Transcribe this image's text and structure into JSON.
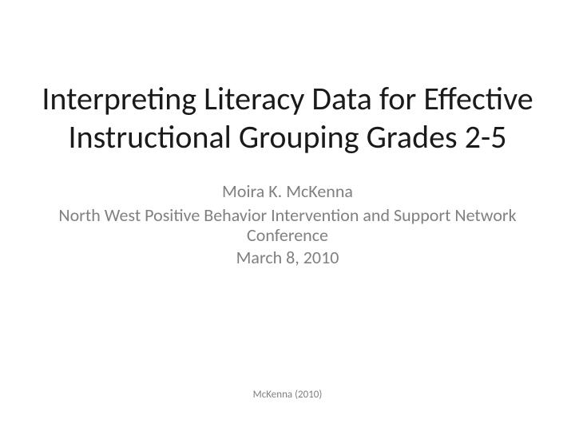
{
  "slide": {
    "title": "Interpreting Literacy Data for Effective Instructional Grouping Grades 2-5",
    "author": "Moira K. McKenna",
    "conference": "North West Positive Behavior Intervention and Support Network Conference",
    "date": "March 8, 2010",
    "footer": "McKenna (2010)"
  },
  "style": {
    "background_color": "#ffffff",
    "title_color": "#1a1a1a",
    "title_fontsize": 40,
    "subtitle_color": "#808080",
    "subtitle_fontsize": 22,
    "footer_color": "#808080",
    "footer_fontsize": 13,
    "font_family": "Calibri"
  }
}
